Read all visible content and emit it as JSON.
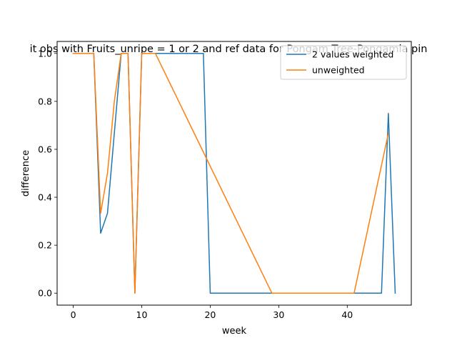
{
  "chart_data": {
    "type": "line",
    "title": "it obs with Fruits_unripe = 1 or 2 and ref data for Pongam Tree-Pongamia pin",
    "xlabel": "week",
    "ylabel": "difference",
    "xlim": [
      -2.35,
      49.35
    ],
    "ylim": [
      -0.05,
      1.05
    ],
    "xticks": [
      0,
      10,
      20,
      30,
      40
    ],
    "yticks": [
      0.0,
      0.2,
      0.4,
      0.6,
      0.8,
      1.0
    ],
    "xtick_labels": [
      "0",
      "10",
      "20",
      "30",
      "40"
    ],
    "ytick_labels": [
      "0.0",
      "0.2",
      "0.4",
      "0.6",
      "0.8",
      "1.0"
    ],
    "grid": false,
    "legend_position": "upper-right",
    "series": [
      {
        "name": "2 values weighted",
        "color": "#1f77b4",
        "x": [
          0,
          1,
          2,
          3,
          4,
          5,
          6,
          7,
          8,
          9,
          10,
          11,
          12,
          13,
          14,
          15,
          16,
          17,
          18,
          19,
          20,
          45,
          46,
          47
        ],
        "y": [
          1.0,
          1.0,
          1.0,
          1.0,
          0.25,
          0.333,
          0.667,
          1.0,
          1.0,
          0.0,
          1.0,
          1.0,
          1.0,
          1.0,
          1.0,
          1.0,
          1.0,
          1.0,
          1.0,
          1.0,
          0.0,
          0.0,
          0.75,
          0.0
        ]
      },
      {
        "name": "unweighted",
        "color": "#ff7f0e",
        "x": [
          0,
          1,
          2,
          3,
          4,
          5,
          6,
          7,
          8,
          9,
          10,
          11,
          12,
          29,
          41,
          46
        ],
        "y": [
          1.0,
          1.0,
          1.0,
          1.0,
          0.333,
          0.5,
          0.8,
          1.0,
          1.0,
          0.0,
          1.0,
          1.0,
          1.0,
          0.0,
          0.0,
          0.667
        ]
      }
    ]
  }
}
